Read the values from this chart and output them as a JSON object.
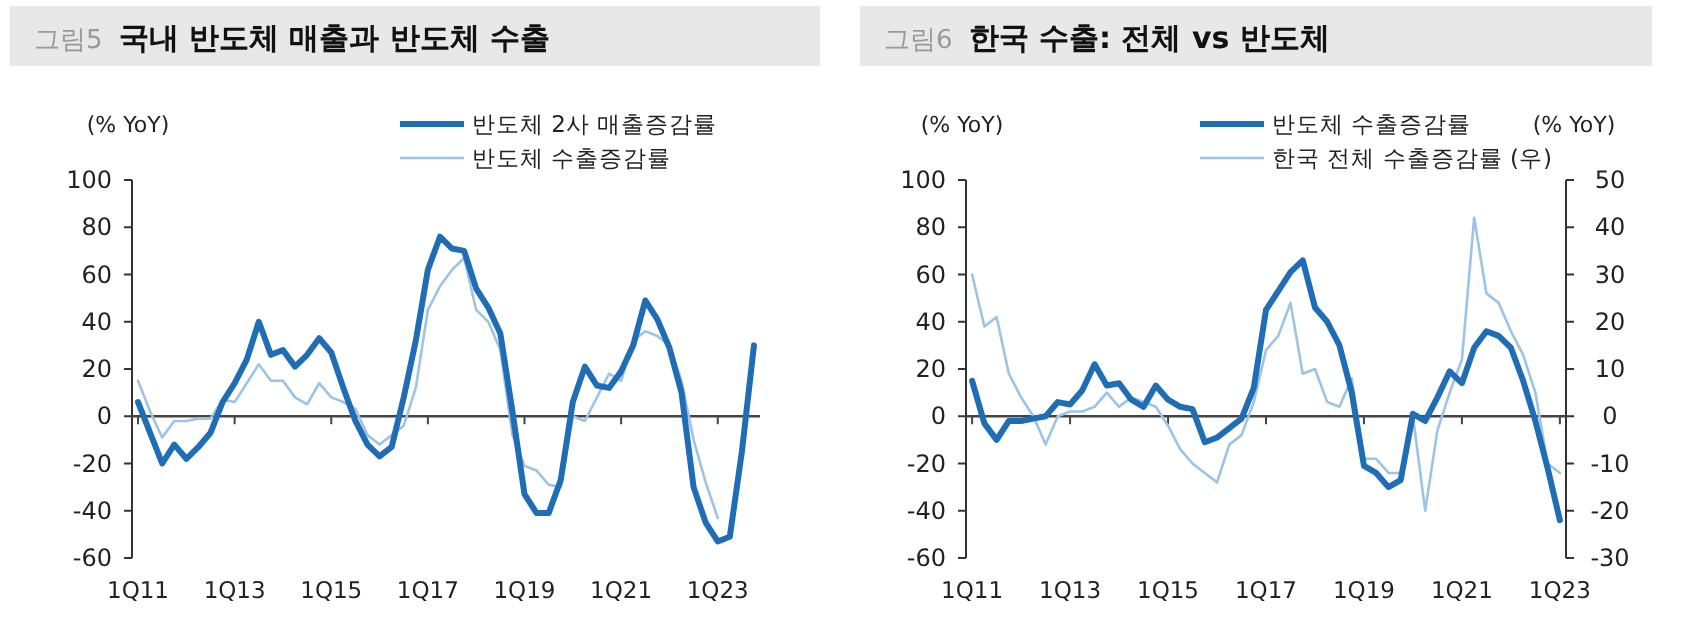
{
  "chart_data": [
    {
      "type": "line",
      "title": "그림5 국내 반도체 매출과 반도체 수출",
      "ylabel": "(% YoY)",
      "categories": [
        "1Q11",
        null,
        null,
        null,
        null,
        null,
        null,
        null,
        "1Q13",
        null,
        null,
        null,
        null,
        null,
        null,
        null,
        "1Q15",
        null,
        null,
        null,
        null,
        null,
        null,
        null,
        "1Q17",
        null,
        null,
        null,
        null,
        null,
        null,
        null,
        "1Q19",
        null,
        null,
        null,
        null,
        null,
        null,
        null,
        "1Q21",
        null,
        null,
        null,
        null,
        null,
        null,
        null,
        "1Q23",
        null,
        null,
        null
      ],
      "ylim": [
        -60,
        100
      ],
      "yticks": [
        -60,
        -40,
        -20,
        0,
        20,
        40,
        60,
        80,
        100
      ],
      "legend": "top",
      "marker": "none",
      "line_style": "solid",
      "series": [
        {
          "name": "반도체 2사 매출증감률",
          "color": "#1f6eb5",
          "values": [
            6,
            -7,
            -20,
            -12,
            -18,
            -13,
            -7,
            6,
            14,
            24,
            40,
            26,
            28,
            21,
            26,
            33,
            27,
            12,
            -2,
            -12,
            -17,
            -13,
            8,
            32,
            62,
            76,
            71,
            70,
            54,
            46,
            35,
            2,
            -33,
            -41,
            -41,
            -27,
            6,
            21,
            13,
            12,
            19,
            30,
            49,
            41,
            29,
            10,
            -30,
            -45,
            -53,
            -51,
            -15,
            30
          ]
        },
        {
          "name": "반도체 수출증감률",
          "color": "#9dc3e6",
          "values": [
            15,
            2,
            -9,
            -2,
            -2,
            -1,
            -1,
            7,
            6,
            14,
            22,
            15,
            15,
            8,
            5,
            14,
            8,
            6,
            3,
            -8,
            -12,
            -8,
            -4,
            12,
            45,
            55,
            62,
            67,
            45,
            40,
            28,
            -8,
            -21,
            -23,
            -29,
            -30,
            0,
            -2,
            8,
            18,
            15,
            32,
            36,
            34,
            30,
            15,
            -10,
            -28,
            -43,
            null,
            null,
            null
          ]
        }
      ]
    },
    {
      "type": "line",
      "title": "그림6 한국 수출: 전체 vs 반도체",
      "ylabel": "(% YoY)",
      "y2label": "(% YoY)",
      "categories": [
        "1Q11",
        null,
        null,
        null,
        null,
        null,
        null,
        null,
        "1Q13",
        null,
        null,
        null,
        null,
        null,
        null,
        null,
        "1Q15",
        null,
        null,
        null,
        null,
        null,
        null,
        null,
        "1Q17",
        null,
        null,
        null,
        null,
        null,
        null,
        null,
        "1Q19",
        null,
        null,
        null,
        null,
        null,
        null,
        null,
        "1Q21",
        null,
        null,
        null,
        null,
        null,
        null,
        null,
        "1Q23"
      ],
      "ylim": [
        -60,
        100
      ],
      "yticks": [
        -60,
        -40,
        -20,
        0,
        20,
        40,
        60,
        80,
        100
      ],
      "y2lim": [
        -30,
        50
      ],
      "y2ticks": [
        -30,
        -20,
        -10,
        0,
        10,
        20,
        30,
        40,
        50
      ],
      "legend": "top",
      "marker": "none",
      "line_style": "solid",
      "series": [
        {
          "name": "반도체 수출증감률",
          "color": "#1f6eb5",
          "values": [
            15,
            -3,
            -10,
            -2,
            -2,
            -1,
            0,
            6,
            5,
            11,
            22,
            13,
            14,
            7,
            4,
            13,
            7,
            4,
            3,
            -11,
            -9,
            -5,
            -1,
            12,
            45,
            53,
            61,
            66,
            46,
            40,
            30,
            10,
            -21,
            -24,
            -30,
            -27,
            1,
            -2,
            8,
            19,
            14,
            29,
            36,
            34,
            29,
            15,
            -2,
            -22,
            -44
          ]
        },
        {
          "name": "한국 전체 수출증감률 (우)",
          "color": "#9dc3e6",
          "axis": "y2",
          "values": [
            30,
            19,
            21,
            9,
            4,
            0,
            -6,
            0,
            1,
            1,
            2,
            5,
            2,
            4,
            3,
            2,
            -2,
            -7,
            -10,
            -12,
            -14,
            -6,
            -4,
            3,
            14,
            17,
            24,
            9,
            10,
            3,
            2,
            8,
            -9,
            -9,
            -12,
            -12,
            0,
            -20,
            -3,
            5,
            12,
            42,
            26,
            24,
            18,
            13,
            5,
            -10,
            -12
          ]
        }
      ]
    }
  ]
}
